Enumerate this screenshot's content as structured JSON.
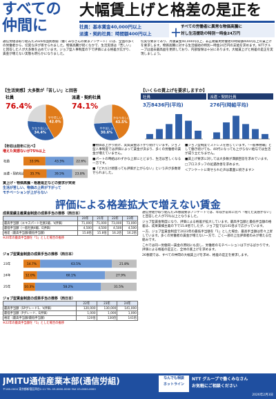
{
  "header": {
    "title_left": [
      "すべての",
      "仲間に"
    ],
    "title_right": "大幅賃上げと格差の是正を",
    "demands": [
      "社員：基本賃金40,000円以上",
      "派遣・契約社員：時間額400円以上"
    ],
    "plus": "＋",
    "special": [
      "すべての労働者に異常な物価高騰に",
      "対し生活援助の特別一時金24万円"
    ]
  },
  "intro": [
    "通信労組は取り組んだ2026年国民春闘（働くみなさんの要求アンケート）には、全国の多くの労働者から、切実な声が寄せられました。物価高騰が続くなかで、生活実感は「苦しい」と回答した人が大多数を占めています。ジョブ型人事制度の下で評価による格差が広がり、賃金が増えない実態も明らかになりました。",
    "切実な要求であり、月額賃金40,000円以上、非正規雇用労働者の時間額400円以上の賃上げを要求します。物価高騰に対する生活援助の特別一時金24万円の支給を求めます。NTTグループは過去最高益を更新しており、内部留保は十分にあります。大幅賃上げと格差の是正を実現しましょう。"
  ],
  "pie_title": "【生活実感】大多数が「苦しい」と回答",
  "bar_title": "【いくらの賃上げを要求しますか】",
  "stack_title": [
    "【年収は前年に比べ】",
    "増えた実感ないが75％以上"
  ],
  "stack_note": [
    "賃上げ・物価高騰・格差是正などの要求が実現",
    "生活が苦しい、物価の上昇が下がって",
    "モチベーションが上がらない"
  ],
  "col_mid": [
    "■物価は上がり続け、実質賃金は下がり続けています。ジョブ型人事制度では評価によって賃金が決まり、多くの労働者の賃金が増えていません。",
    "■パートの時給はわずかな上昇にとどまり、生活は苦しくなる一方です。",
    "■「どれだけ頑張っても評価が上がらない」という声が多数寄せられました。"
  ],
  "col_right": [
    "■ジョブ型制度でストレスを感じています。「一般事務職」として働き続けても、40代になっても上がらない給与では生活が成り立たちません。",
    "■賃上げ要求に対しては大多数が満額回答を求めています。",
    "□ブロスタッフの処遇改善を求めます。",
    "＜アンケートに寄せられた声は裏面に続きます＞"
  ],
  "headline": "評価による格差拡大で増えない賃金",
  "table1": {
    "title": "成果業績主義賃金制度の成果手当の推移（西日本）",
    "header": [
      "",
      "20年",
      "21年",
      "22年",
      "23年"
    ],
    "rows": [
      [
        "最高手当額（エキスパート社員1級、V評価）",
        "71,000",
        "71,000",
        "73,000",
        "73,000"
      ],
      [
        "最低手当額（一般社員4級、E評価）",
        "4,500",
        "4,500",
        "4,500",
        "4,500"
      ],
      [
        "格差（最高手当額/最低手当額）",
        "15.8倍",
        "15.8倍",
        "16.2倍",
        "16.2倍"
      ]
    ],
    "note": "※20年の最高手当額を「1」とした場合の推移"
  },
  "table2": {
    "title": "ジョブ型賃金制度の成果手当の推移（西日本）",
    "header": [
      "",
      "22年",
      "23年",
      "24年"
    ],
    "rows": [
      [
        "最高手当額（SPグレード1、V評価）",
        "120,000",
        "130,000",
        "141,000"
      ],
      [
        "最低手当額（Pグレード、E評価）",
        "1,000",
        "1,000",
        "1,000"
      ],
      [
        "格差（最高手当額/最低手当額）",
        "120倍",
        "130倍",
        "141倍"
      ]
    ],
    "note": "※22年の最高手当額を「1」とした場合の推移"
  },
  "lower_text": [
    "通信労組が取り組んだ26春闘要求アンケートでは、年収が前年に比べ「増えた実感がない」と回答した人が75％以上となりました。",
    "ジョブ型賃金制度になり、評価による格差が拡大しています。最高手当額と最低手当額の格差は、成果業績主義の下で15.8倍でしたが、ジョブ型では141倍まで広がっています。",
    "一方、ジョブ型賃金制度で2023年の最低手当額を「1」とした場合、最高手当額は年々上昇しています。多くの労働者の賃金が増えない一方で、ごく一部の上位評価者のみが増える仕組みです。",
    "これでは同一労働同一賃金の原則にも反し、労働者のモチベーションは下がるばかりです。評価による格差の是正と、全体の底上げを求めます。",
    "26春闘では、すべての仲間の大幅賃上げを求め、格差の是正を要求します。"
  ],
  "footer": {
    "org": "JMITU通信産業本部(通信労組)",
    "address": "〒160-0004 東京都新宿区四谷2-11 TEL 03-0000-0000 FAX 03-0000-0000",
    "hotline": [
      "なんでも相談",
      "ホットライン"
    ],
    "cta": [
      "NTT グループで働くみなさん",
      "お気軽にご相談ください"
    ],
    "date": "2026年2月3日"
  },
  "chart_data": [
    {
      "type": "pie",
      "title": "社員",
      "total_label": "76.4%",
      "categories": [
        "やや苦しい",
        "かなり苦しい",
        null
      ],
      "values": [
        42.0,
        34.4,
        23.6
      ],
      "value_labels": [
        "42.0%",
        "34.4%",
        null
      ],
      "colors": [
        "#e07b1a",
        "#2f5fa8",
        "#d9d9d9"
      ]
    },
    {
      "type": "pie",
      "title": "派遣・契約社員",
      "total_label": "74.1%",
      "categories": [
        "かなり苦しい",
        "やや苦しい",
        null
      ],
      "values": [
        43.5,
        30.6,
        25.9
      ],
      "value_labels": [
        "43.5%",
        "30.6%",
        null
      ],
      "colors": [
        "#e07b1a",
        "#2f5fa8",
        "#d9d9d9"
      ]
    },
    {
      "type": "bar",
      "title": "社員",
      "subtitle": "3万8436円(平均)",
      "categories": [
        null,
        null,
        null,
        null,
        null,
        null
      ],
      "values": [
        6,
        12,
        18,
        30,
        22,
        10
      ],
      "color": "#2f5fa8",
      "ylim": [
        0,
        35
      ]
    },
    {
      "type": "bar",
      "title": "派遣・契約社員",
      "subtitle": "276円(時給平均)",
      "categories": [
        null,
        null,
        null,
        null,
        null,
        null
      ],
      "values": [
        8,
        20,
        28,
        18,
        12,
        6
      ],
      "color": "#2f5fa8",
      "ylim": [
        0,
        35
      ]
    },
    {
      "type": "stacked_hbar",
      "categories": [
        "社員",
        "派遣・契約社員"
      ],
      "series": [
        {
          "color": "#e07b1a",
          "values": [
            33.9,
            35.7
          ],
          "value_labels": [
            "33.9%",
            "35.7%"
          ]
        },
        {
          "color": "#6f9ad6",
          "values": [
            43.5,
            39.5
          ],
          "value_labels": [
            "43.5%",
            "39.5%"
          ]
        },
        {
          "color": "#bfbfbf",
          "values": [
            22.6,
            23.8
          ],
          "value_labels": [
            "22.6%",
            "23.8%"
          ]
        }
      ],
      "xlim": [
        0,
        100
      ]
    },
    {
      "type": "stacked_hbar",
      "categories": [
        "23年",
        "24年",
        "25年"
      ],
      "series": [
        {
          "color": "#e07b1a",
          "values": [
            14.7,
            12.0,
            10.3
          ],
          "value_labels": [
            "14.7%",
            "12.0%",
            "10.3%"
          ]
        },
        {
          "color": "#6f9ad6",
          "values": [
            63.5,
            60.1,
            58.2
          ],
          "value_labels": [
            "63.5%",
            "60.1%",
            "58.2%"
          ]
        },
        {
          "color": "#bfbfbf",
          "values": [
            21.8,
            27.9,
            31.5
          ],
          "value_labels": [
            "21.8%",
            "27.9%",
            "31.5%"
          ]
        }
      ],
      "xlim": [
        0,
        100
      ]
    }
  ]
}
